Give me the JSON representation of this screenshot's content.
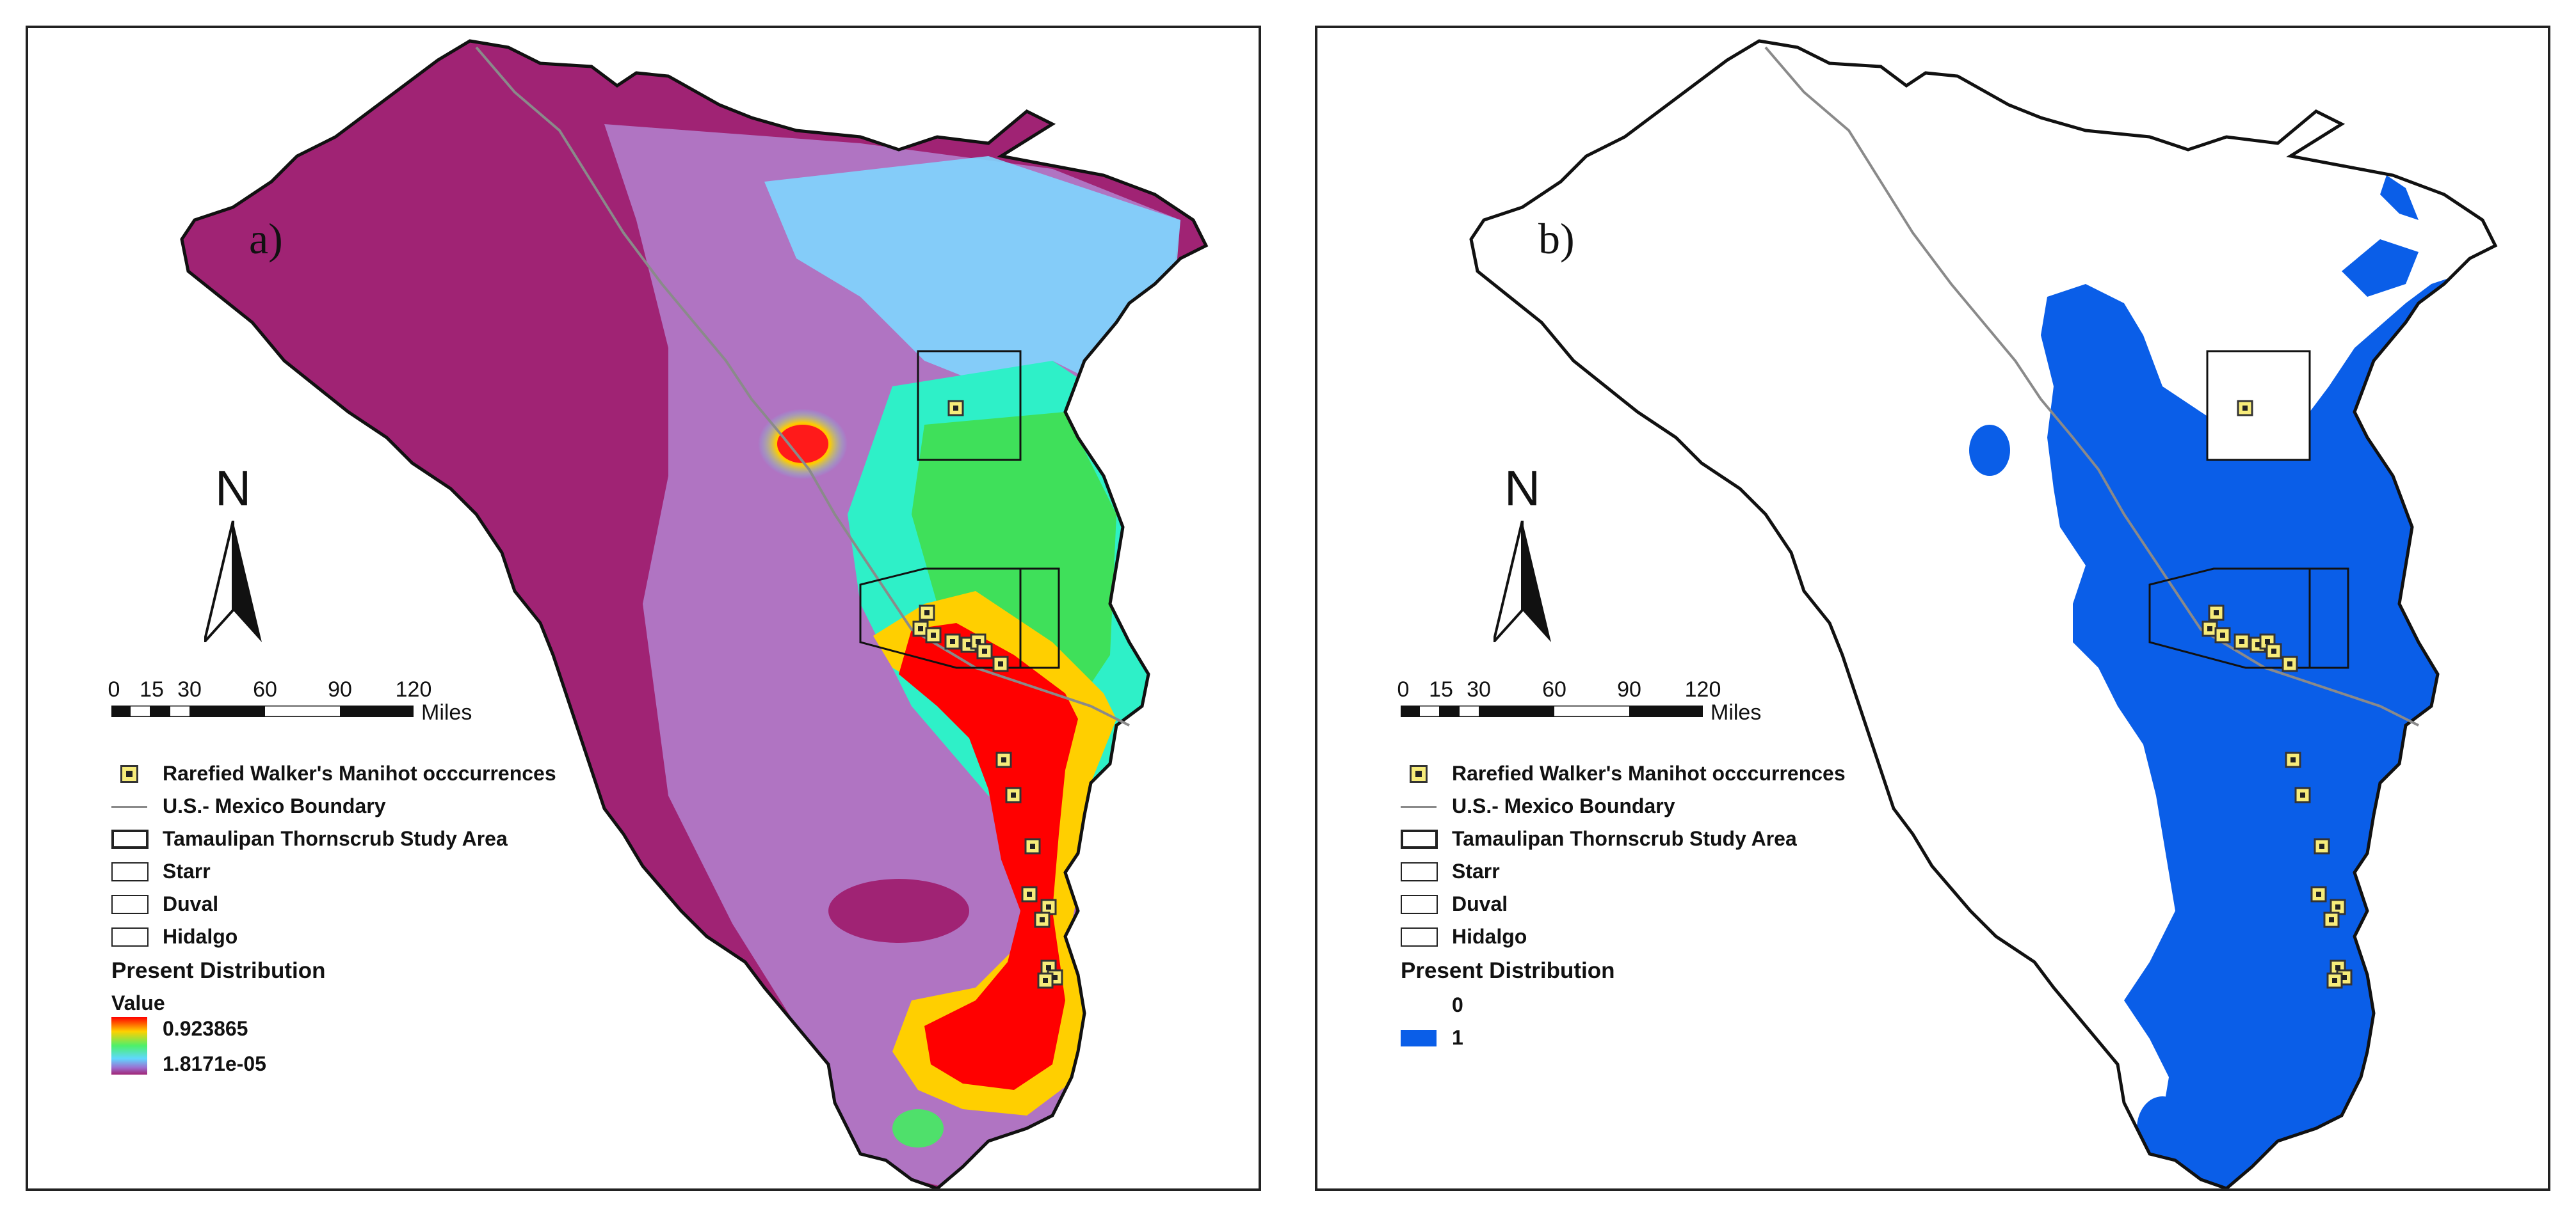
{
  "panels": [
    {
      "id": "a",
      "label": "a)",
      "legend": {
        "occurrences": "Rarefied Walker's Manihot occcurrences",
        "boundary": "U.S.- Mexico Boundary",
        "study_area": "Tamaulipan Thornscrub Study Area",
        "county_1": "Starr",
        "county_2": "Duval",
        "county_3": "Hidalgo",
        "layer_title": "Present Distribution",
        "value_title": "Value",
        "value_high": "0.923865",
        "value_low": "1.8171e-05"
      }
    },
    {
      "id": "b",
      "label": "b)",
      "legend": {
        "occurrences": "Rarefied Walker's Manihot occcurrences",
        "boundary": "U.S.- Mexico Boundary",
        "study_area": "Tamaulipan Thornscrub Study Area",
        "county_1": "Starr",
        "county_2": "Duval",
        "county_3": "Hidalgo",
        "layer_title": "Present Distribution",
        "class_0": "0",
        "class_1": "1"
      }
    }
  ],
  "north_arrow": "N",
  "scale_bar": {
    "ticks": [
      "0",
      "15",
      "30",
      "60",
      "90",
      "120"
    ],
    "unit": "Miles"
  },
  "colors": {
    "suitability_high": "#ff0000",
    "suitability_mid": "#4cf06b",
    "suitability_low": "#a02374",
    "binary_present": "#0a5ee8",
    "occurrence_fill": "#f7ec7a"
  }
}
